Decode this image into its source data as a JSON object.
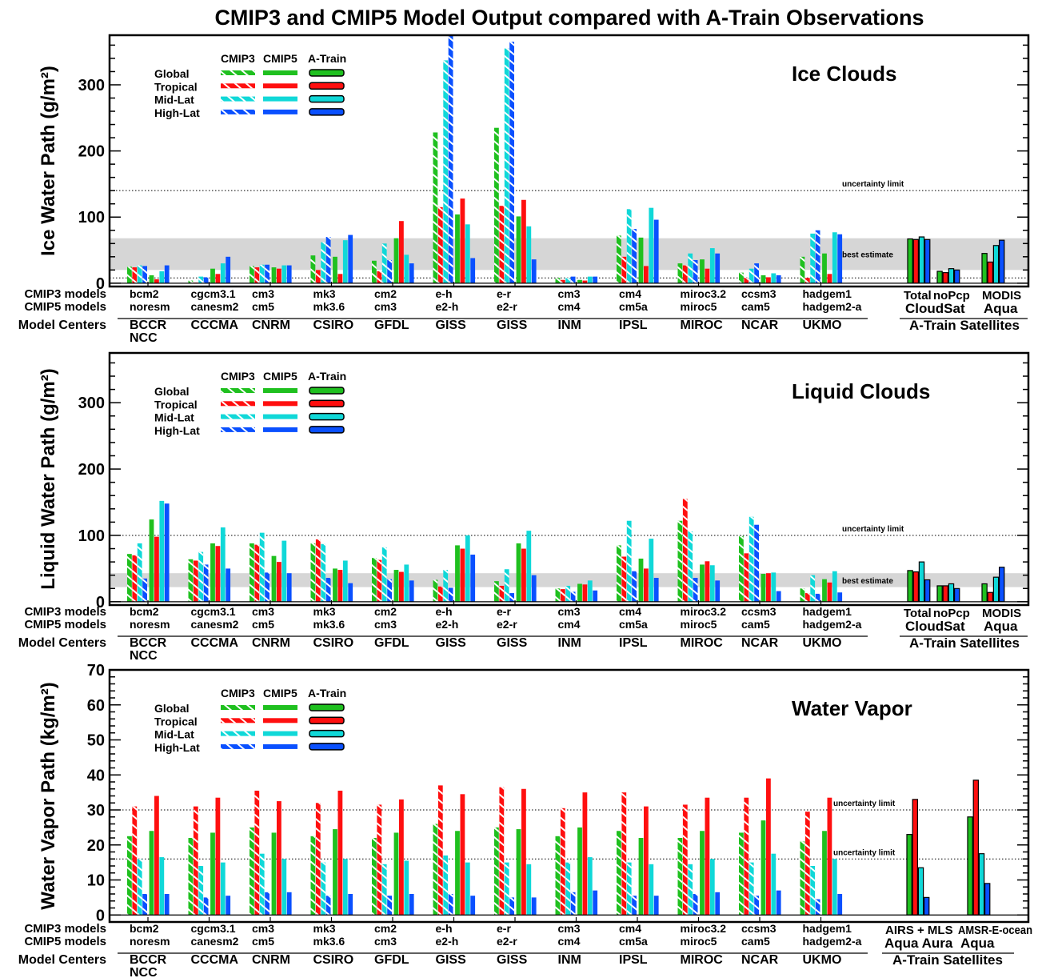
{
  "title": "CMIP3  and  CMIP5  Model  Output  compared  with  A-Train Observations",
  "colors": {
    "global": "#1fc01f",
    "tropical": "#ff0f0f",
    "midlat": "#10d8d8",
    "highlat": "#0a50ff",
    "band": "#d6d6d6"
  },
  "legend": {
    "headers": [
      "CMIP3",
      "CMIP5",
      "A-Train"
    ],
    "regions": [
      "Global",
      "Tropical",
      "Mid-Lat",
      "High-Lat"
    ]
  },
  "row_labels": {
    "cmip3": "CMIP3 models",
    "cmip5": "CMIP5 models",
    "centers": "Model Centers"
  },
  "groups": [
    {
      "cmip3": "bcm2",
      "cmip5": "noresm",
      "center": "BCCR",
      "center2": "NCC"
    },
    {
      "cmip3": "cgcm3.1",
      "cmip5": "canesm2",
      "center": "CCCMA"
    },
    {
      "cmip3": "cm3",
      "cmip5": "cm5",
      "center": "CNRM"
    },
    {
      "cmip3": "mk3",
      "cmip5": "mk3.6",
      "center": "CSIRO"
    },
    {
      "cmip3": "cm2",
      "cmip5": "cm3",
      "center": "GFDL"
    },
    {
      "cmip3": "e-h",
      "cmip5": "e2-h",
      "center": "GISS"
    },
    {
      "cmip3": "e-r",
      "cmip5": "e2-r",
      "center": "GISS"
    },
    {
      "cmip3": "cm3",
      "cmip5": "cm4",
      "center": "INM"
    },
    {
      "cmip3": "cm4",
      "cmip5": "cm5a",
      "center": "IPSL"
    },
    {
      "cmip3": "miroc3.2",
      "cmip5": "miroc5",
      "center": "MIROC"
    },
    {
      "cmip3": "ccsm3",
      "cmip5": "cam5",
      "center": "NCAR"
    },
    {
      "cmip3": "hadgem1",
      "cmip5": "hadgem2-a",
      "center": "UKMO"
    }
  ],
  "chart_data": [
    {
      "type": "bar",
      "title": "Ice Clouds",
      "ylabel": "Ice Water Path (g/m²)",
      "ylim": [
        -5,
        375
      ],
      "yticks": [
        0,
        100,
        200,
        300
      ],
      "cmip3": [
        [
          25,
          24,
          27,
          26
        ],
        [
          4,
          1,
          10,
          9
        ],
        [
          26,
          24,
          28,
          28
        ],
        [
          42,
          20,
          62,
          70
        ],
        [
          34,
          18,
          60,
          35
        ],
        [
          228,
          115,
          337,
          375
        ],
        [
          235,
          117,
          355,
          365
        ],
        [
          8,
          5,
          8,
          10
        ],
        [
          72,
          40,
          112,
          82
        ],
        [
          30,
          27,
          45,
          35
        ],
        [
          16,
          8,
          22,
          30
        ],
        [
          40,
          8,
          75,
          80
        ]
      ],
      "cmip5": [
        [
          12,
          6,
          18,
          27
        ],
        [
          22,
          14,
          30,
          40
        ],
        [
          24,
          22,
          27,
          27
        ],
        [
          40,
          14,
          65,
          73
        ],
        [
          68,
          94,
          43,
          30
        ],
        [
          104,
          128,
          89,
          38
        ],
        [
          101,
          126,
          86,
          36
        ],
        [
          5,
          4,
          10,
          10
        ],
        [
          69,
          26,
          114,
          96
        ],
        [
          36,
          22,
          53,
          45
        ],
        [
          12,
          9,
          15,
          12
        ],
        [
          45,
          14,
          77,
          74
        ]
      ],
      "atrain": [
        {
          "sub": "Total",
          "v": [
            67,
            66,
            70,
            66
          ]
        },
        {
          "sub": "noPcp",
          "v": [
            18,
            16,
            22,
            20
          ]
        },
        {
          "sub": "MODIS",
          "v": [
            45,
            32,
            57,
            65
          ]
        }
      ],
      "sat_groups": [
        "CloudSat",
        "Aqua"
      ],
      "best_estimate": [
        20,
        68
      ],
      "best_estimate_label": "best estimate",
      "ref_lines": [
        {
          "y": 140,
          "label": "uncertainty limit"
        },
        {
          "y": 8,
          "label": ""
        }
      ]
    },
    {
      "type": "bar",
      "title": "Liquid Clouds",
      "ylabel": "Liquid Water Path (g/m²)",
      "ylim": [
        -5,
        375
      ],
      "yticks": [
        0,
        100,
        200,
        300
      ],
      "cmip3": [
        [
          72,
          70,
          88,
          35
        ],
        [
          64,
          62,
          75,
          56
        ],
        [
          88,
          86,
          104,
          44
        ],
        [
          88,
          94,
          87,
          36
        ],
        [
          66,
          63,
          82,
          34
        ],
        [
          33,
          23,
          48,
          21
        ],
        [
          31,
          24,
          49,
          13
        ],
        [
          20,
          19,
          24,
          15
        ],
        [
          85,
          68,
          122,
          46
        ],
        [
          122,
          155,
          106,
          36
        ],
        [
          99,
          73,
          128,
          116
        ],
        [
          20,
          13,
          40,
          12
        ]
      ],
      "cmip5": [
        [
          124,
          98,
          152,
          148
        ],
        [
          88,
          84,
          112,
          50
        ],
        [
          69,
          60,
          92,
          43
        ],
        [
          50,
          48,
          62,
          28
        ],
        [
          48,
          45,
          56,
          32
        ],
        [
          85,
          80,
          100,
          71
        ],
        [
          88,
          80,
          107,
          40
        ],
        [
          27,
          26,
          32,
          17
        ],
        [
          65,
          50,
          95,
          36
        ],
        [
          56,
          61,
          55,
          32
        ],
        [
          42,
          43,
          44,
          16
        ],
        [
          34,
          29,
          46,
          14
        ]
      ],
      "atrain": [
        {
          "sub": "Total",
          "v": [
            47,
            45,
            60,
            33
          ]
        },
        {
          "sub": "noPcp",
          "v": [
            24,
            24,
            27,
            20
          ]
        },
        {
          "sub": "MODIS",
          "v": [
            27,
            14,
            37,
            52
          ]
        }
      ],
      "sat_groups": [
        "CloudSat",
        "Aqua"
      ],
      "best_estimate": [
        22,
        43
      ],
      "best_estimate_label": "best estimate",
      "ref_lines": [
        {
          "y": 100,
          "label": "uncertainty limit"
        }
      ]
    },
    {
      "type": "bar",
      "title": "Water Vapor",
      "ylabel": "Water Vapor Path (kg/m²)",
      "ylim": [
        -2,
        70
      ],
      "yticks": [
        0,
        10,
        20,
        30,
        40,
        50,
        60,
        70
      ],
      "cmip3": [
        [
          22.5,
          31,
          16,
          6
        ],
        [
          22,
          31,
          14,
          5
        ],
        [
          25,
          35.5,
          17.5,
          6.5
        ],
        [
          22.5,
          32,
          15,
          5.5
        ],
        [
          22,
          31.5,
          14.5,
          5.5
        ],
        [
          26,
          37,
          17,
          6
        ],
        [
          25,
          36.5,
          15,
          5
        ],
        [
          22.5,
          30.5,
          15,
          6.5
        ],
        [
          24,
          35,
          15,
          5.5
        ],
        [
          22,
          31.5,
          14.5,
          6
        ],
        [
          23.5,
          33.5,
          15,
          5.5
        ],
        [
          21,
          29.5,
          14,
          4.5
        ]
      ],
      "cmip5": [
        [
          24,
          34,
          16.5,
          6
        ],
        [
          23.5,
          33.5,
          15,
          5.5
        ],
        [
          23.5,
          32.5,
          16,
          6.5
        ],
        [
          24.5,
          35.5,
          16,
          6
        ],
        [
          23.5,
          33,
          15.5,
          6
        ],
        [
          24,
          34.5,
          15,
          5.5
        ],
        [
          24.5,
          36,
          14.5,
          5
        ],
        [
          25,
          35,
          16.5,
          7
        ],
        [
          22,
          31,
          14.5,
          5.5
        ],
        [
          24,
          33.5,
          16,
          6.5
        ],
        [
          27,
          39,
          17.5,
          7
        ],
        [
          24,
          33.5,
          16,
          6
        ]
      ],
      "atrain": [
        {
          "sub": "AIRS + MLS",
          "v": [
            23,
            33,
            13.5,
            5
          ]
        },
        {
          "sub": "AMSR-E-ocean",
          "v": [
            28,
            38.5,
            17.5,
            9
          ]
        }
      ],
      "sat_groups": [
        "Aqua Aura",
        "Aqua"
      ],
      "best_estimate": null,
      "best_estimate_label": "",
      "ref_lines": [
        {
          "y": 30,
          "label": "uncertainty limit"
        },
        {
          "y": 16,
          "label": "uncertainty limit"
        }
      ]
    }
  ],
  "sat_title": "A-Train Satellites"
}
